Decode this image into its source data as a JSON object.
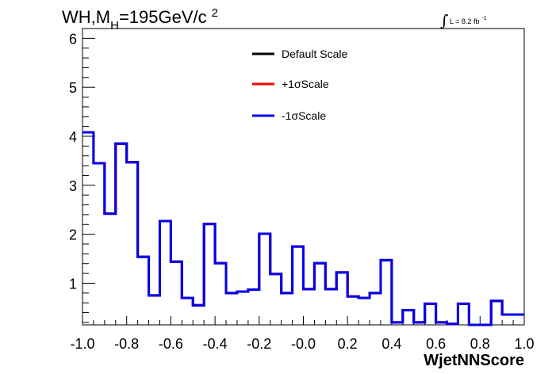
{
  "chart_data": {
    "type": "line",
    "title": {
      "prefix": "WH,M",
      "subscript": "H",
      "middle": "=195GeV/c",
      "superscript": "2"
    },
    "luminosity": {
      "symbol": "∫",
      "text": "L = 8.2 fb",
      "superscript": "-1"
    },
    "xlabel": "WjetNNScore",
    "ylabel": "",
    "xlim": [
      -1.0,
      1.0
    ],
    "ylim": [
      0.15,
      6.2
    ],
    "x_ticks": [
      "-1.0",
      "-0.8",
      "-0.6",
      "-0.4",
      "-0.2",
      "-0.0",
      "0.2",
      "0.4",
      "0.6",
      "0.8",
      "1.0"
    ],
    "x_tick_values": [
      -1.0,
      -0.8,
      -0.6,
      -0.4,
      -0.2,
      0.0,
      0.2,
      0.4,
      0.6,
      0.8,
      1.0
    ],
    "y_ticks": [
      "1",
      "2",
      "3",
      "4",
      "5",
      "6"
    ],
    "y_tick_values": [
      1,
      2,
      3,
      4,
      5,
      6
    ],
    "bin_edges": [
      -1.0,
      -0.95,
      -0.9,
      -0.85,
      -0.8,
      -0.75,
      -0.7,
      -0.65,
      -0.6,
      -0.55,
      -0.5,
      -0.45,
      -0.4,
      -0.35,
      -0.3,
      -0.25,
      -0.2,
      -0.15,
      -0.1,
      -0.05,
      0.0,
      0.05,
      0.1,
      0.15,
      0.2,
      0.25,
      0.3,
      0.35,
      0.4,
      0.45,
      0.5,
      0.55,
      0.6,
      0.65,
      0.7,
      0.75,
      0.8,
      0.85,
      0.9,
      0.95,
      1.0
    ],
    "legend_position": "top-center",
    "series": [
      {
        "name": "Default Scale",
        "color": "#000000",
        "values": [
          4.08,
          3.45,
          2.42,
          3.85,
          3.47,
          1.54,
          0.75,
          2.27,
          1.44,
          0.7,
          0.55,
          2.21,
          1.41,
          0.8,
          0.83,
          0.87,
          2.01,
          1.19,
          0.8,
          1.75,
          0.88,
          1.41,
          0.88,
          1.22,
          0.73,
          0.7,
          0.8,
          1.47,
          0.2,
          0.45,
          0.2,
          0.58,
          0.2,
          0.17,
          0.58,
          0.15,
          0.15,
          0.64,
          0.36,
          0.36
        ]
      },
      {
        "name": "+1σScale",
        "color": "#ff0000",
        "values": [
          4.08,
          3.45,
          2.42,
          3.85,
          3.47,
          1.54,
          0.75,
          2.27,
          1.44,
          0.7,
          0.55,
          2.21,
          1.41,
          0.8,
          0.83,
          0.87,
          2.01,
          1.19,
          0.8,
          1.75,
          0.88,
          1.41,
          0.88,
          1.22,
          0.73,
          0.7,
          0.8,
          1.47,
          0.2,
          0.45,
          0.2,
          0.58,
          0.2,
          0.17,
          0.58,
          0.15,
          0.15,
          0.64,
          0.36,
          0.36
        ]
      },
      {
        "name": "-1σScale",
        "color": "#0000ee",
        "values": [
          4.08,
          3.45,
          2.42,
          3.85,
          3.47,
          1.54,
          0.75,
          2.27,
          1.44,
          0.7,
          0.55,
          2.21,
          1.41,
          0.8,
          0.83,
          0.87,
          2.01,
          1.19,
          0.8,
          1.75,
          0.88,
          1.41,
          0.88,
          1.22,
          0.73,
          0.7,
          0.8,
          1.47,
          0.2,
          0.45,
          0.2,
          0.58,
          0.2,
          0.17,
          0.58,
          0.15,
          0.15,
          0.64,
          0.36,
          0.36
        ]
      }
    ]
  }
}
